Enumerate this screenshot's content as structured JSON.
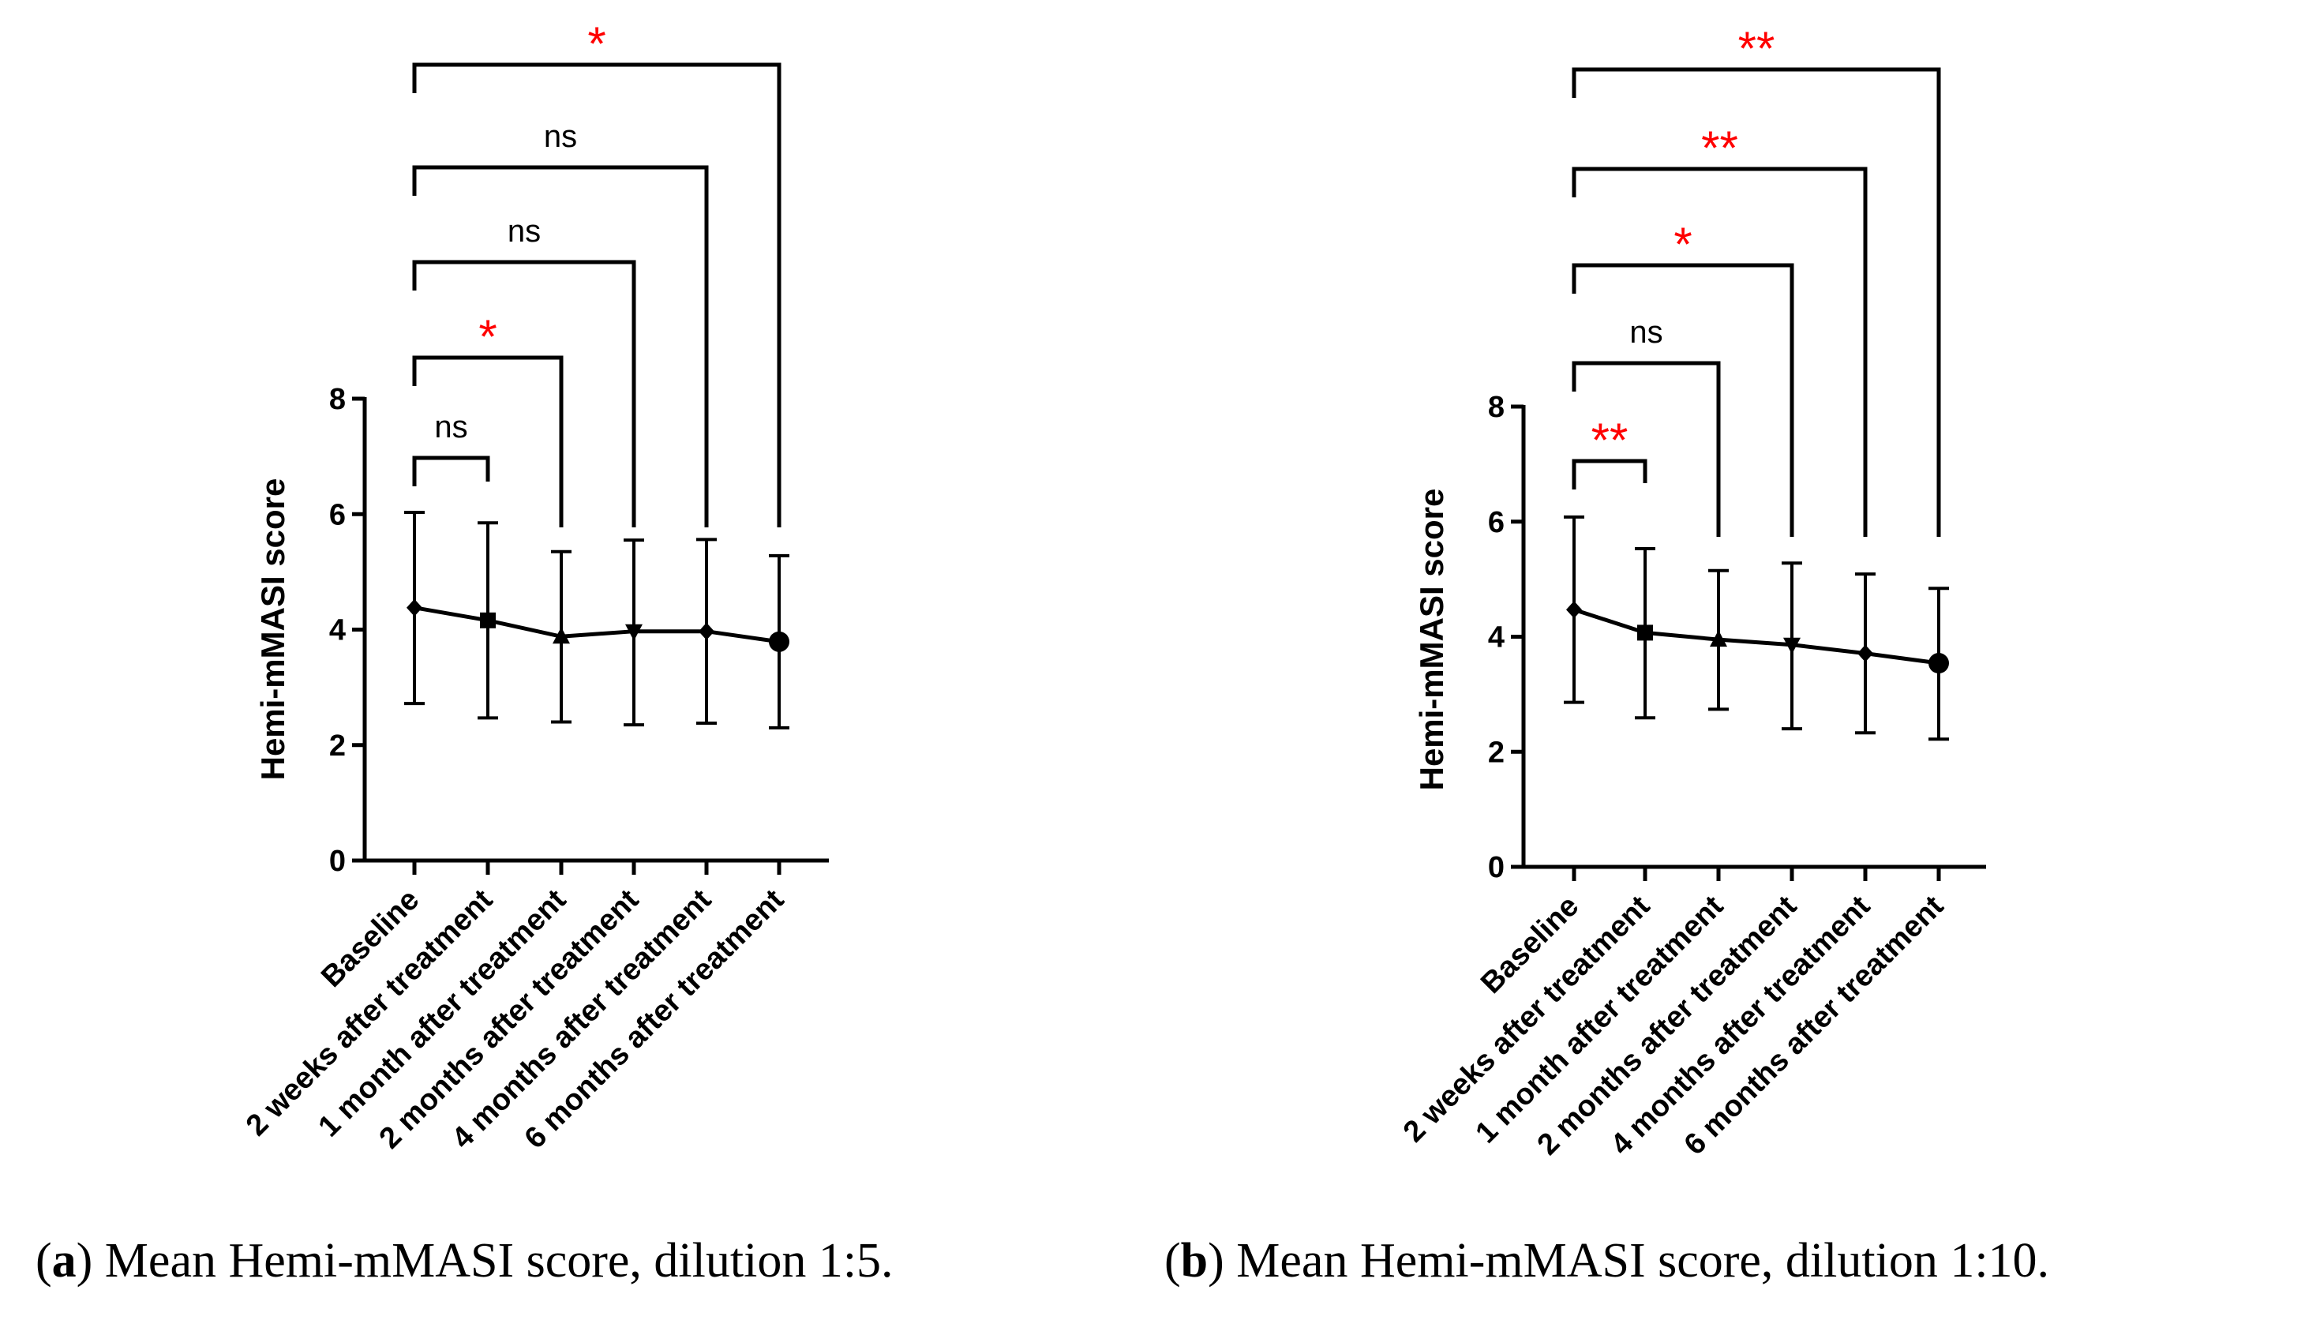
{
  "chart_data": [
    {
      "type": "line",
      "panel": "a",
      "ylabel": "Hemi-mMASI score",
      "xlabel": "",
      "ylim": [
        0,
        8
      ],
      "yticks": [
        "0",
        "2",
        "4",
        "6",
        "8"
      ],
      "categories": [
        "Baseline",
        "2 weeks after treatment",
        "1 month after treatment",
        "2 months after treatment",
        "4 months after treatment",
        "6 months after treatment"
      ],
      "series": [
        {
          "name": "Hemi-mMASI",
          "values": [
            4.38,
            4.16,
            3.88,
            3.97,
            3.97,
            3.79
          ],
          "err_upper": [
            6.03,
            5.85,
            5.35,
            5.55,
            5.56,
            5.28
          ],
          "err_lower": [
            2.72,
            2.47,
            2.4,
            2.35,
            2.38,
            2.3
          ],
          "markers": [
            "diamond",
            "square",
            "triangle-up",
            "triangle-down",
            "diamond",
            "circle"
          ]
        }
      ],
      "comparisons": [
        {
          "from": "Baseline",
          "to": "2 weeks after treatment",
          "label": "ns",
          "color": "#000000"
        },
        {
          "from": "Baseline",
          "to": "1 month after treatment",
          "label": "*",
          "color": "#ff0000"
        },
        {
          "from": "Baseline",
          "to": "2 months after treatment",
          "label": "ns",
          "color": "#000000"
        },
        {
          "from": "Baseline",
          "to": "4 months after treatment",
          "label": "ns",
          "color": "#000000"
        },
        {
          "from": "Baseline",
          "to": "6 months after treatment",
          "label": "*",
          "color": "#ff0000"
        }
      ]
    },
    {
      "type": "line",
      "panel": "b",
      "ylabel": "Hemi-mMASI score",
      "xlabel": "",
      "ylim": [
        0,
        8
      ],
      "yticks": [
        "0",
        "2",
        "4",
        "6",
        "8"
      ],
      "categories": [
        "Baseline",
        "2 weeks after treatment",
        "1 month after treatment",
        "2 months after treatment",
        "4 months after treatment",
        "6 months after treatment"
      ],
      "series": [
        {
          "name": "Hemi-mMASI",
          "values": [
            4.47,
            4.07,
            3.95,
            3.86,
            3.71,
            3.54
          ],
          "err_upper": [
            6.08,
            5.53,
            5.15,
            5.28,
            5.09,
            4.84
          ],
          "err_lower": [
            2.86,
            2.59,
            2.74,
            2.4,
            2.33,
            2.22
          ],
          "markers": [
            "diamond",
            "square",
            "triangle-up",
            "triangle-down",
            "diamond",
            "circle"
          ]
        }
      ],
      "comparisons": [
        {
          "from": "Baseline",
          "to": "2 weeks after treatment",
          "label": "**",
          "color": "#ff0000"
        },
        {
          "from": "Baseline",
          "to": "1 month after treatment",
          "label": "ns",
          "color": "#000000"
        },
        {
          "from": "Baseline",
          "to": "2 months after treatment",
          "label": "*",
          "color": "#ff0000"
        },
        {
          "from": "Baseline",
          "to": "4 months after treatment",
          "label": "**",
          "color": "#ff0000"
        },
        {
          "from": "Baseline",
          "to": "6 months after treatment",
          "label": "**",
          "color": "#ff0000"
        }
      ]
    }
  ],
  "captions": {
    "a": {
      "letter": "a",
      "text": ") Mean Hemi-mMASI score, dilution 1:5."
    },
    "b": {
      "letter": "b",
      "text": ") Mean Hemi-mMASI score, dilution 1:10."
    }
  }
}
